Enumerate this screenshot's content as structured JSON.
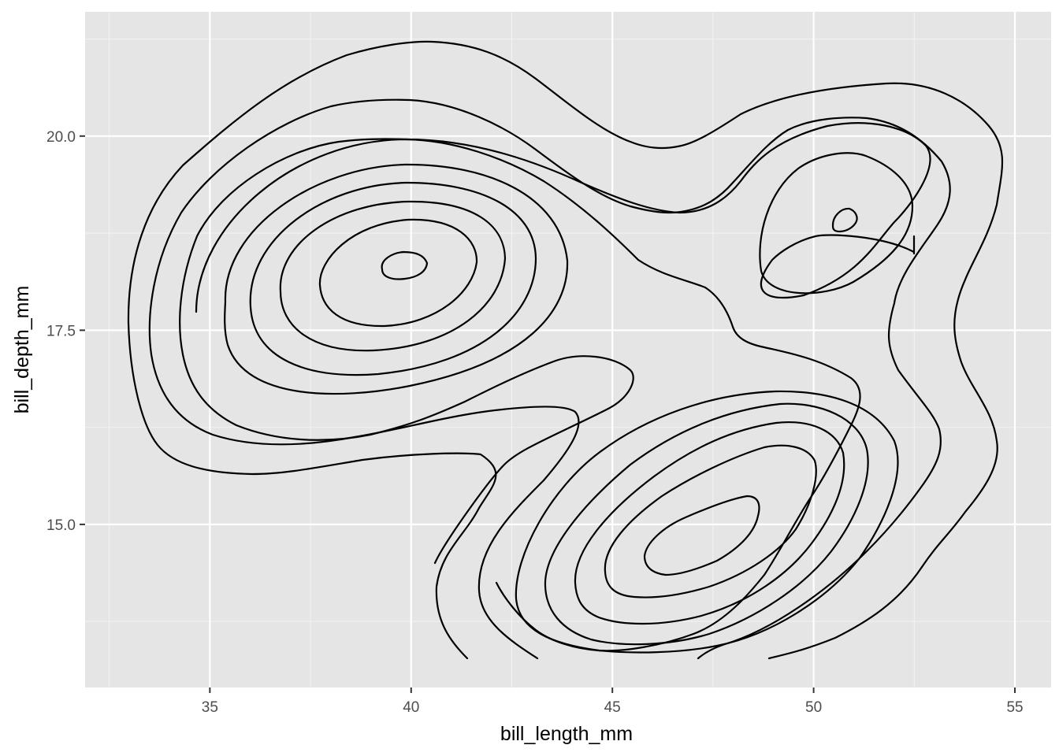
{
  "chart_data": {
    "type": "contour",
    "xlabel": "bill_length_mm",
    "ylabel": "bill_depth_mm",
    "xlim": [
      31.9,
      55.9
    ],
    "ylim": [
      12.9,
      21.6
    ],
    "x_ticks": [
      35,
      40,
      45,
      50,
      55
    ],
    "x_tick_labels": [
      "35",
      "40",
      "45",
      "50",
      "55"
    ],
    "y_ticks": [
      15.0,
      17.5,
      20.0
    ],
    "y_tick_labels": [
      "15.0",
      "17.5",
      "20.0"
    ],
    "grid": true,
    "legend": "none",
    "colors": {
      "panel_background": "#e5e5e5",
      "grid_major": "#ffffff",
      "grid_minor": "#f2f2f2",
      "contour_line": "#000000",
      "tick_text": "#4d4d4d",
      "axis_title_text": "#000000",
      "tick_mark": "#333333"
    },
    "contours": [
      {
        "name": "c-outer-1",
        "closed": true,
        "points": [
          [
            32.5,
            17.6
          ],
          [
            33.3,
            19.1
          ],
          [
            35.0,
            20.3
          ],
          [
            37.4,
            21.1
          ],
          [
            39.9,
            21.3
          ],
          [
            41.6,
            21.1
          ],
          [
            43.8,
            20.2
          ],
          [
            46.3,
            19.9
          ],
          [
            48.0,
            20.2
          ],
          [
            50.0,
            20.6
          ],
          [
            51.8,
            20.7
          ],
          [
            53.5,
            20.4
          ],
          [
            54.6,
            19.8
          ],
          [
            54.5,
            18.7
          ],
          [
            53.8,
            17.5
          ],
          [
            54.3,
            16.6
          ],
          [
            54.5,
            15.9
          ],
          [
            54.1,
            15.2
          ],
          [
            53.0,
            14.1
          ],
          [
            51.8,
            13.2
          ],
          [
            50.8,
            12.9
          ],
          [
            48.8,
            13.1
          ]
        ]
      },
      {
        "name": "c-outer-2",
        "closed": true,
        "points": [
          [
            34.5,
            16.2
          ],
          [
            33.9,
            17.3
          ],
          [
            34.3,
            18.6
          ],
          [
            35.6,
            19.8
          ],
          [
            37.6,
            20.5
          ],
          [
            39.5,
            20.6
          ],
          [
            41.4,
            20.4
          ],
          [
            43.2,
            19.8
          ],
          [
            45.0,
            19.3
          ],
          [
            46.5,
            19.1
          ],
          [
            48.0,
            19.3
          ],
          [
            49.3,
            20.0
          ],
          [
            51.0,
            20.3
          ],
          [
            52.5,
            19.9
          ],
          [
            53.4,
            19.1
          ],
          [
            52.8,
            18.1
          ],
          [
            52.0,
            17.5
          ],
          [
            52.6,
            16.7
          ],
          [
            53.0,
            15.7
          ],
          [
            52.6,
            14.9
          ],
          [
            51.5,
            14.2
          ],
          [
            50.0,
            13.6
          ],
          [
            48.0,
            13.0
          ],
          [
            46.9,
            12.9
          ]
        ]
      },
      {
        "name": "c-inner-3",
        "closed": true,
        "points": [
          [
            38.5,
            18.3
          ],
          [
            39.3,
            18.55
          ],
          [
            40.2,
            18.9
          ],
          [
            41.1,
            18.9
          ],
          [
            41.6,
            18.6
          ],
          [
            41.5,
            18.0
          ],
          [
            40.8,
            17.45
          ],
          [
            39.6,
            17.15
          ],
          [
            38.4,
            17.35
          ],
          [
            37.5,
            17.9
          ],
          [
            37.8,
            18.3
          ]
        ]
      },
      {
        "name": "c-inner-4",
        "closed": true,
        "points": [
          [
            39.0,
            18.3
          ],
          [
            39.5,
            18.45
          ],
          [
            40.0,
            18.4
          ],
          [
            40.4,
            18.2
          ],
          [
            40.1,
            17.95
          ],
          [
            39.6,
            17.9
          ],
          [
            39.1,
            18.0
          ],
          [
            38.9,
            18.15
          ]
        ]
      },
      {
        "name": "c-inner-5",
        "closed": true,
        "points": [
          [
            49.3,
            18.2
          ],
          [
            49.7,
            19.3
          ],
          [
            50.8,
            19.9
          ],
          [
            51.8,
            19.6
          ],
          [
            52.3,
            18.9
          ],
          [
            51.6,
            18.2
          ],
          [
            50.5,
            17.9
          ],
          [
            49.6,
            18.1
          ]
        ]
      },
      {
        "name": "c-inner-6",
        "closed": true,
        "points": [
          [
            50.4,
            18.9
          ],
          [
            50.7,
            19.1
          ],
          [
            51.0,
            19.05
          ],
          [
            51.0,
            18.85
          ],
          [
            50.7,
            18.7
          ],
          [
            50.45,
            18.75
          ]
        ]
      },
      {
        "name": "c-south-1",
        "closed": true,
        "points": [
          [
            45.6,
            14.6
          ],
          [
            46.5,
            14.95
          ],
          [
            47.6,
            15.2
          ],
          [
            48.4,
            15.25
          ],
          [
            48.5,
            15.0
          ],
          [
            48.0,
            14.5
          ],
          [
            47.0,
            14.25
          ],
          [
            46.0,
            14.2
          ],
          [
            45.4,
            14.4
          ]
        ]
      },
      {
        "name": "c-south-2",
        "closed": true,
        "points": [
          [
            44.6,
            14.5
          ],
          [
            45.5,
            15.1
          ],
          [
            46.7,
            15.6
          ],
          [
            48.0,
            15.9
          ],
          [
            49.5,
            15.8
          ],
          [
            49.9,
            15.3
          ],
          [
            49.5,
            14.6
          ],
          [
            48.4,
            14.1
          ],
          [
            46.9,
            13.8
          ],
          [
            45.3,
            13.9
          ],
          [
            44.6,
            14.2
          ]
        ]
      },
      {
        "name": "c-south-3",
        "closed": true,
        "points": [
          [
            43.8,
            14.5
          ],
          [
            44.8,
            15.4
          ],
          [
            46.2,
            16.1
          ],
          [
            47.8,
            16.5
          ],
          [
            49.4,
            16.5
          ],
          [
            50.6,
            15.9
          ],
          [
            50.8,
            15.2
          ],
          [
            50.1,
            14.5
          ],
          [
            48.8,
            13.8
          ],
          [
            47.0,
            13.45
          ],
          [
            45.1,
            13.5
          ],
          [
            43.8,
            14.1
          ]
        ]
      }
    ]
  }
}
